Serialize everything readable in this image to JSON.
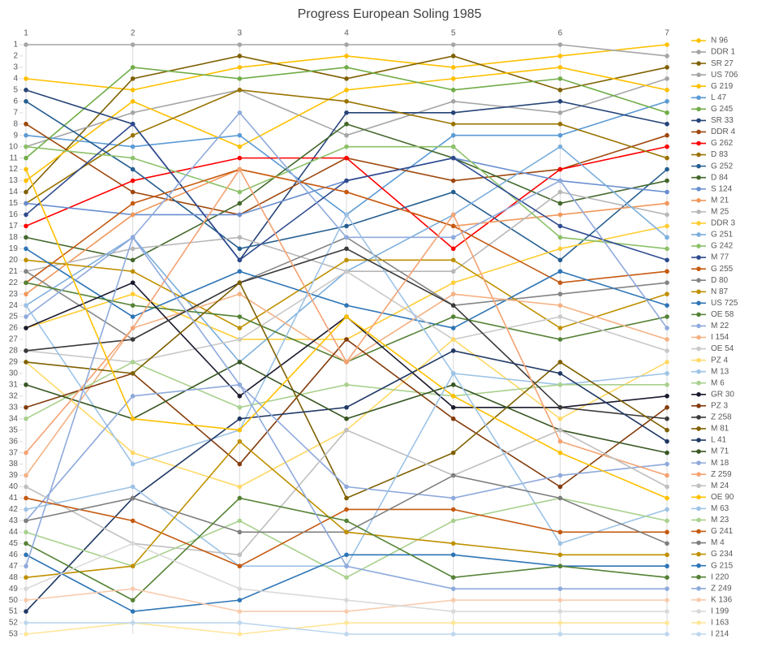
{
  "chart_data": {
    "type": "line",
    "title": "Progress European Soling 1985",
    "x": [
      1,
      2,
      3,
      4,
      5,
      6,
      7
    ],
    "xlim": [
      1,
      7
    ],
    "xticks": [
      1,
      2,
      3,
      4,
      5,
      6,
      7
    ],
    "ylim": [
      1,
      53
    ],
    "y_inverted": true,
    "yticks": [
      1,
      2,
      3,
      4,
      5,
      6,
      7,
      8,
      9,
      10,
      11,
      12,
      13,
      14,
      15,
      16,
      17,
      18,
      19,
      20,
      21,
      22,
      23,
      24,
      25,
      26,
      27,
      28,
      29,
      30,
      31,
      32,
      33,
      34,
      35,
      36,
      37,
      38,
      39,
      40,
      41,
      42,
      43,
      44,
      45,
      46,
      47,
      48,
      49,
      50,
      51,
      52,
      53
    ],
    "grid": "x",
    "markers": true,
    "legend": "right",
    "series": [
      {
        "name": "N 96",
        "color": "#FFC000",
        "values": [
          4,
          5,
          3,
          2,
          3,
          2,
          1
        ]
      },
      {
        "name": "DDR 1",
        "color": "#A5A5A5",
        "values": [
          1,
          1,
          1,
          1,
          1,
          1,
          2
        ]
      },
      {
        "name": "SR 27",
        "color": "#7F6000",
        "values": [
          14,
          4,
          2,
          4,
          2,
          5,
          3
        ]
      },
      {
        "name": "US 706",
        "color": "#A5A5A5",
        "values": [
          10,
          7,
          5,
          9,
          6,
          7,
          4
        ]
      },
      {
        "name": "G 219",
        "color": "#FFC000",
        "values": [
          13,
          6,
          10,
          5,
          4,
          3,
          5
        ]
      },
      {
        "name": "L 47",
        "color": "#5B9BD5",
        "values": [
          9,
          10,
          9,
          16,
          9,
          9,
          6
        ]
      },
      {
        "name": "G 245",
        "color": "#70AD47",
        "values": [
          11,
          3,
          4,
          3,
          5,
          4,
          7
        ]
      },
      {
        "name": "SR 33",
        "color": "#264478",
        "values": [
          5,
          8,
          20,
          7,
          7,
          6,
          8
        ]
      },
      {
        "name": "DDR 4",
        "color": "#9E480E",
        "values": [
          8,
          14,
          16,
          11,
          13,
          12,
          9
        ]
      },
      {
        "name": "G 262",
        "color": "#FF0000",
        "values": [
          17,
          13,
          11,
          11,
          19,
          12,
          10
        ]
      },
      {
        "name": "D 83",
        "color": "#997300",
        "values": [
          15,
          9,
          5,
          6,
          8,
          8,
          11
        ]
      },
      {
        "name": "G 252",
        "color": "#255E91",
        "values": [
          6,
          12,
          19,
          17,
          14,
          20,
          12
        ]
      },
      {
        "name": "D 84",
        "color": "#43682B",
        "values": [
          18,
          20,
          15,
          8,
          11,
          15,
          13
        ]
      },
      {
        "name": "S 124",
        "color": "#698ED0",
        "values": [
          15,
          16,
          16,
          13,
          11,
          13,
          14
        ]
      },
      {
        "name": "M 21",
        "color": "#F1975A",
        "values": [
          23,
          16,
          12,
          14,
          17,
          16,
          15
        ]
      },
      {
        "name": "M 25",
        "color": "#B7B7B7",
        "values": [
          21,
          19,
          18,
          21,
          21,
          14,
          16
        ]
      },
      {
        "name": "DDR 3",
        "color": "#FFCD33",
        "values": [
          26,
          23,
          27,
          27,
          22,
          19,
          17
        ]
      },
      {
        "name": "G 251",
        "color": "#7CAFDD",
        "values": [
          24,
          18,
          29,
          21,
          16,
          10,
          18
        ]
      },
      {
        "name": "G 242",
        "color": "#8CC168",
        "values": [
          10,
          11,
          14,
          10,
          10,
          18,
          19
        ]
      },
      {
        "name": "M 77",
        "color": "#2F4B8F",
        "values": [
          16,
          8,
          20,
          13,
          11,
          17,
          20
        ]
      },
      {
        "name": "G 255",
        "color": "#C55A11",
        "values": [
          22,
          15,
          12,
          14,
          17,
          22,
          21
        ]
      },
      {
        "name": "D 80",
        "color": "#848484",
        "values": [
          21,
          27,
          22,
          18,
          24,
          23,
          22
        ]
      },
      {
        "name": "N 87",
        "color": "#BF9000",
        "values": [
          20,
          21,
          26,
          20,
          20,
          26,
          23
        ]
      },
      {
        "name": "US 725",
        "color": "#2E75B6",
        "values": [
          19,
          25,
          21,
          24,
          26,
          21,
          24
        ]
      },
      {
        "name": "OE 58",
        "color": "#548235",
        "values": [
          22,
          24,
          25,
          29,
          25,
          27,
          25
        ]
      },
      {
        "name": "M 22",
        "color": "#8FAADC",
        "values": [
          25,
          18,
          7,
          18,
          18,
          13,
          26
        ]
      },
      {
        "name": "I 154",
        "color": "#F4B183",
        "values": [
          39,
          26,
          23,
          29,
          23,
          24,
          27
        ]
      },
      {
        "name": "OE 54",
        "color": "#C9C9C9",
        "values": [
          28,
          29,
          27,
          21,
          27,
          25,
          28
        ]
      },
      {
        "name": "PZ 4",
        "color": "#FFD966",
        "values": [
          29,
          37,
          40,
          35,
          27,
          34,
          29
        ]
      },
      {
        "name": "M 13",
        "color": "#9DC3E6",
        "values": [
          24,
          38,
          35,
          16,
          30,
          31,
          30
        ]
      },
      {
        "name": "M 6",
        "color": "#A9D18E",
        "values": [
          34,
          29,
          33,
          31,
          32,
          31,
          31
        ]
      },
      {
        "name": "GR 30",
        "color": "#1A1A2E",
        "values": [
          26,
          22,
          32,
          25,
          33,
          33,
          32
        ]
      },
      {
        "name": "PZ 3",
        "color": "#843C0C",
        "values": [
          33,
          30,
          38,
          27,
          34,
          40,
          33
        ]
      },
      {
        "name": "Z 258",
        "color": "#3A3A3A",
        "values": [
          28,
          27,
          22,
          19,
          24,
          33,
          34
        ]
      },
      {
        "name": "M 81",
        "color": "#7F6000",
        "values": [
          29,
          30,
          22,
          41,
          37,
          29,
          35
        ]
      },
      {
        "name": "L 41",
        "color": "#1F3864",
        "values": [
          51,
          41,
          34,
          33,
          28,
          30,
          36
        ]
      },
      {
        "name": "M 71",
        "color": "#385723",
        "values": [
          31,
          34,
          29,
          34,
          31,
          35,
          37
        ]
      },
      {
        "name": "M 18",
        "color": "#8EA9DB",
        "values": [
          43,
          32,
          31,
          40,
          41,
          39,
          38
        ]
      },
      {
        "name": "Z 259",
        "color": "#F4A272",
        "values": [
          37,
          26,
          12,
          29,
          16,
          36,
          39
        ]
      },
      {
        "name": "M 24",
        "color": "#BFBFBF",
        "values": [
          40,
          45,
          46,
          35,
          39,
          35,
          40
        ]
      },
      {
        "name": "OE 90",
        "color": "#FFC000",
        "values": [
          12,
          34,
          35,
          25,
          32,
          37,
          41
        ]
      },
      {
        "name": "M 63",
        "color": "#9DC3E6",
        "values": [
          42,
          40,
          47,
          47,
          30,
          45,
          42
        ]
      },
      {
        "name": "M 23",
        "color": "#A9D18E",
        "values": [
          44,
          47,
          43,
          48,
          43,
          41,
          43
        ]
      },
      {
        "name": "G 241",
        "color": "#C55A11",
        "values": [
          41,
          43,
          47,
          42,
          42,
          44,
          44
        ]
      },
      {
        "name": "M 4",
        "color": "#7F7F7F",
        "values": [
          43,
          41,
          44,
          44,
          39,
          41,
          45
        ]
      },
      {
        "name": "G 234",
        "color": "#BF9000",
        "values": [
          48,
          47,
          36,
          44,
          45,
          46,
          46
        ]
      },
      {
        "name": "G 215",
        "color": "#2E75B6",
        "values": [
          46,
          51,
          50,
          46,
          46,
          47,
          47
        ]
      },
      {
        "name": "I 220",
        "color": "#548235",
        "values": [
          45,
          50,
          41,
          43,
          48,
          47,
          48
        ]
      },
      {
        "name": "Z 249",
        "color": "#8FAADC",
        "values": [
          47,
          18,
          31,
          47,
          49,
          49,
          49
        ]
      },
      {
        "name": "K 136",
        "color": "#F8CBAD",
        "values": [
          50,
          49,
          51,
          51,
          50,
          50,
          50
        ]
      },
      {
        "name": "I 199",
        "color": "#D9D9D9",
        "values": [
          49,
          45,
          49,
          50,
          51,
          51,
          51
        ]
      },
      {
        "name": "I 163",
        "color": "#FFE699",
        "values": [
          53,
          52,
          53,
          52,
          52,
          52,
          52
        ]
      },
      {
        "name": "I 214",
        "color": "#BDD7EE",
        "values": [
          52,
          52,
          52,
          53,
          53,
          53,
          53
        ]
      }
    ]
  }
}
